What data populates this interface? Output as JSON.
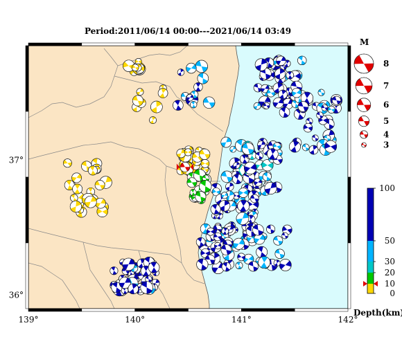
{
  "title": "Period:2011/06/14 00:00---2021/06/14 03:49",
  "map": {
    "lon_range": [
      139,
      142
    ],
    "lat_range": [
      35.9,
      37.85
    ],
    "lon_ticks": [
      {
        "value": 139,
        "label": "139°"
      },
      {
        "value": 140,
        "label": "140°"
      },
      {
        "value": 141,
        "label": "141°"
      },
      {
        "value": 142,
        "label": "142°"
      }
    ],
    "lat_ticks": [
      {
        "value": 37,
        "label": "37°"
      },
      {
        "value": 36,
        "label": "36°"
      }
    ],
    "land_color": "#fbe5c4",
    "sea_color": "#d9fbfd",
    "border_color": "#888888",
    "mainshock": {
      "lon": 140.47,
      "lat": 36.95,
      "label_color": "#e00000"
    }
  },
  "magnitude_legend": {
    "header": "M",
    "items": [
      {
        "label": "8",
        "mag": 8
      },
      {
        "label": "7",
        "mag": 7
      },
      {
        "label": "6",
        "mag": 6
      },
      {
        "label": "5",
        "mag": 5
      },
      {
        "label": "4",
        "mag": 4
      },
      {
        "label": "3",
        "mag": 3
      }
    ],
    "color": "#e00000"
  },
  "depth_scale": {
    "title": "Depth(km)",
    "ticks": [
      {
        "value": 100,
        "label": "100"
      },
      {
        "value": 50,
        "label": "50"
      },
      {
        "value": 30,
        "label": "30"
      },
      {
        "value": 20,
        "label": "20"
      },
      {
        "value": 10,
        "label": "10"
      },
      {
        "value": 0,
        "label": "0"
      }
    ],
    "bands": [
      {
        "from": 0,
        "to": 10,
        "color": "#ffd800"
      },
      {
        "from": 10,
        "to": 20,
        "color": "#00c800"
      },
      {
        "from": 20,
        "to": 30,
        "color": "#00c8c8"
      },
      {
        "from": 30,
        "to": 50,
        "color": "#00b4ff"
      },
      {
        "from": 50,
        "to": 100,
        "color": "#0000b4"
      }
    ],
    "marker_depth": 10
  }
}
